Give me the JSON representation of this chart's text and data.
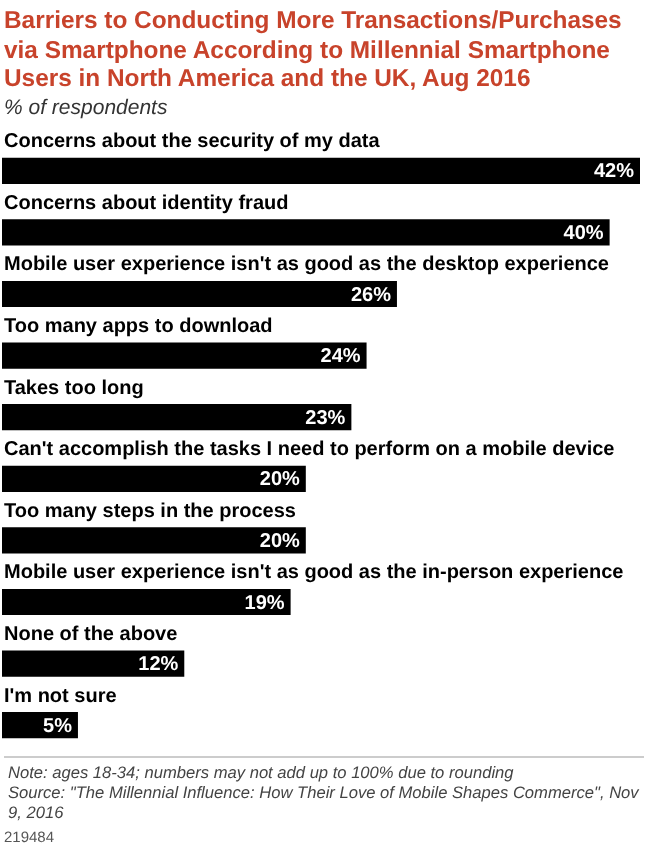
{
  "chart_data": {
    "type": "bar",
    "orientation": "horizontal",
    "title": "Barriers to Conducting More Transactions/Purchases via Smartphone According to Millennial Smartphone Users in North America and the UK, Aug 2016",
    "subtitle": "% of respondents",
    "categories": [
      "Concerns about the security of my data",
      "Concerns about identity fraud",
      "Mobile user experience isn't as good as the desktop experience",
      "Too many apps to download",
      "Takes too long",
      "Can't accomplish the tasks I need to perform on a mobile device",
      "Too many steps in the process",
      "Mobile user experience isn't as good as the in-person experience",
      "None of the above",
      "I'm not sure"
    ],
    "values": [
      42,
      40,
      26,
      24,
      23,
      20,
      20,
      19,
      12,
      5
    ],
    "value_labels": [
      "42%",
      "40%",
      "26%",
      "24%",
      "23%",
      "20%",
      "20%",
      "19%",
      "12%",
      "5%"
    ],
    "color": "#000000",
    "xlim": [
      0,
      42
    ],
    "legend": false,
    "annotations": [
      "Note: ages 18-34; numbers may not add up to 100% due to rounding",
      "Source: \"The Millennial Influence: How Their Love of Mobile Shapes Commerce\", Nov 9, 2016",
      "219484"
    ]
  }
}
